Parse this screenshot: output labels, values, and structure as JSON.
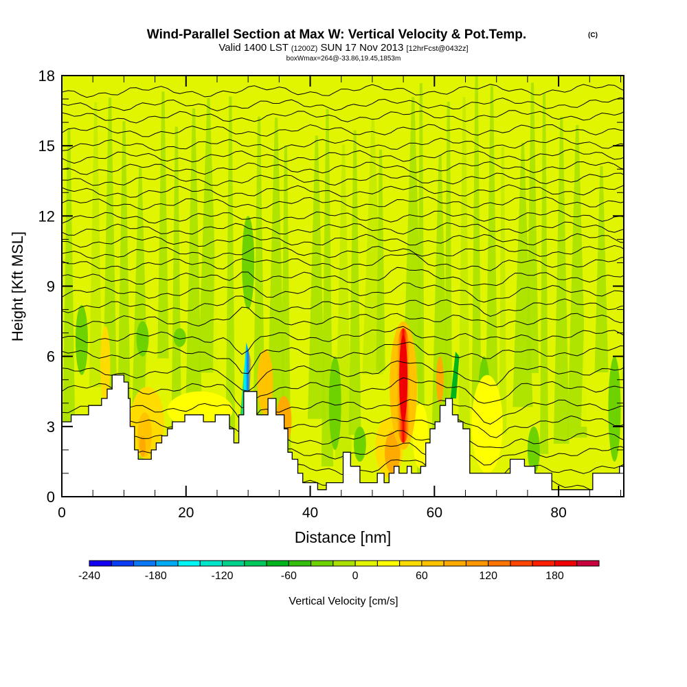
{
  "chart_data": {
    "type": "heatmap",
    "title": "Wind-Parallel Section at Max W: Vertical Velocity & Pot.Temp.",
    "title_mark": "(C)",
    "subtitle_parts": {
      "a": "Valid 1400 LST",
      "b": "(1200Z)",
      "c": "SUN 17 Nov 2013",
      "d": "[12hrFcst@0432z]"
    },
    "subtitle2": "boxWmax=264@-33.86,19.45,1853m",
    "xlabel": "Distance [nm]",
    "ylabel": "Height [Kft MSL]",
    "xlim": [
      0,
      90.5
    ],
    "ylim": [
      0,
      18
    ],
    "xticks": [
      0,
      20,
      40,
      60,
      80
    ],
    "xtick_labels": [
      "0",
      "20",
      "40",
      "60",
      "80"
    ],
    "yticks": [
      0,
      3,
      6,
      9,
      12,
      15,
      18
    ],
    "ytick_labels": [
      "0",
      "3",
      "6",
      "9",
      "12",
      "15",
      "18"
    ],
    "x_minor_step": 5,
    "y_minor_step": 1,
    "colorbar": {
      "label": "Vertical Velocity [cm/s]",
      "levels": [
        -240,
        -220,
        -200,
        -180,
        -160,
        -140,
        -120,
        -100,
        -80,
        -60,
        -40,
        -20,
        0,
        20,
        40,
        60,
        80,
        100,
        120,
        140,
        160,
        180,
        200,
        220
      ],
      "colors": [
        "#1400f0",
        "#0a3cf5",
        "#0a78f5",
        "#00aaf5",
        "#00f5f5",
        "#00e6c8",
        "#00d28c",
        "#00c85a",
        "#00b41e",
        "#32be0a",
        "#6ed200",
        "#aae100",
        "#e1f500",
        "#ffff00",
        "#ffdc00",
        "#ffc300",
        "#ffaa00",
        "#ff9600",
        "#ff7300",
        "#ff4600",
        "#ff1e00",
        "#f00000",
        "#c8003c"
      ],
      "tick_values": [
        -240,
        -180,
        -120,
        -60,
        0,
        60,
        120,
        180
      ],
      "tick_labels": [
        "-240",
        "-180",
        "-120",
        "-60",
        "0",
        "60",
        "120",
        "180"
      ]
    },
    "terrain_profile_kft": [
      [
        0,
        3.2
      ],
      [
        1.5,
        3.2
      ],
      [
        1.5,
        3.5
      ],
      [
        4.3,
        3.5
      ],
      [
        4.3,
        3.9
      ],
      [
        6.4,
        3.9
      ],
      [
        6.4,
        4.2
      ],
      [
        7.3,
        4.2
      ],
      [
        7.3,
        4.6
      ],
      [
        8.1,
        4.6
      ],
      [
        8.1,
        5.2
      ],
      [
        10.0,
        5.2
      ],
      [
        10.0,
        4.9
      ],
      [
        10.7,
        4.9
      ],
      [
        10.7,
        4.2
      ],
      [
        11.0,
        4.2
      ],
      [
        11.0,
        3.0
      ],
      [
        11.7,
        3.0
      ],
      [
        11.7,
        2.0
      ],
      [
        12.3,
        2.0
      ],
      [
        12.3,
        1.6
      ],
      [
        14.4,
        1.6
      ],
      [
        14.4,
        2.0
      ],
      [
        15.2,
        2.0
      ],
      [
        15.2,
        2.3
      ],
      [
        16.1,
        2.3
      ],
      [
        16.1,
        2.6
      ],
      [
        17.0,
        2.6
      ],
      [
        17.0,
        2.9
      ],
      [
        17.8,
        2.9
      ],
      [
        17.8,
        3.2
      ],
      [
        19.8,
        3.2
      ],
      [
        19.8,
        3.5
      ],
      [
        22.8,
        3.5
      ],
      [
        22.8,
        3.2
      ],
      [
        24.7,
        3.2
      ],
      [
        24.7,
        3.5
      ],
      [
        27.0,
        3.5
      ],
      [
        27.0,
        2.9
      ],
      [
        27.7,
        2.9
      ],
      [
        27.7,
        2.3
      ],
      [
        28.5,
        2.3
      ],
      [
        28.5,
        3.5
      ],
      [
        29.3,
        3.5
      ],
      [
        29.3,
        4.5
      ],
      [
        31.4,
        4.5
      ],
      [
        31.4,
        3.5
      ],
      [
        33.2,
        3.5
      ],
      [
        33.2,
        4.2
      ],
      [
        34.5,
        4.2
      ],
      [
        34.5,
        3.5
      ],
      [
        35.8,
        3.5
      ],
      [
        35.8,
        2.9
      ],
      [
        36.4,
        2.9
      ],
      [
        36.4,
        1.9
      ],
      [
        37.1,
        1.9
      ],
      [
        37.1,
        1.6
      ],
      [
        38.0,
        1.6
      ],
      [
        38.0,
        1.0
      ],
      [
        38.8,
        1.0
      ],
      [
        38.8,
        0.6
      ],
      [
        41.2,
        0.6
      ],
      [
        41.2,
        0.3
      ],
      [
        42.6,
        0.3
      ],
      [
        42.6,
        0.6
      ],
      [
        45.3,
        0.6
      ],
      [
        45.3,
        1.9
      ],
      [
        46.5,
        1.9
      ],
      [
        46.5,
        1.3
      ],
      [
        48.0,
        1.3
      ],
      [
        48.0,
        0.6
      ],
      [
        50.8,
        0.6
      ],
      [
        50.8,
        1.0
      ],
      [
        51.9,
        1.0
      ],
      [
        51.9,
        0.6
      ],
      [
        52.7,
        0.6
      ],
      [
        52.7,
        1.0
      ],
      [
        53.5,
        1.0
      ],
      [
        53.5,
        1.3
      ],
      [
        54.3,
        1.3
      ],
      [
        54.3,
        1.0
      ],
      [
        55.6,
        1.0
      ],
      [
        55.6,
        1.3
      ],
      [
        56.3,
        1.3
      ],
      [
        56.3,
        1.0
      ],
      [
        57.8,
        1.0
      ],
      [
        57.8,
        1.3
      ],
      [
        58.6,
        1.3
      ],
      [
        58.6,
        2.3
      ],
      [
        59.3,
        2.3
      ],
      [
        59.3,
        2.9
      ],
      [
        60.1,
        2.9
      ],
      [
        60.1,
        3.2
      ],
      [
        60.9,
        3.2
      ],
      [
        60.9,
        3.9
      ],
      [
        61.8,
        3.9
      ],
      [
        61.8,
        4.2
      ],
      [
        62.9,
        4.2
      ],
      [
        62.9,
        3.5
      ],
      [
        63.8,
        3.5
      ],
      [
        63.8,
        3.2
      ],
      [
        64.6,
        3.2
      ],
      [
        64.6,
        2.9
      ],
      [
        65.7,
        2.9
      ],
      [
        65.7,
        1.0
      ],
      [
        72.2,
        1.0
      ],
      [
        72.2,
        1.6
      ],
      [
        74.5,
        1.6
      ],
      [
        74.5,
        1.3
      ],
      [
        76.2,
        1.3
      ],
      [
        76.2,
        1.0
      ],
      [
        78.9,
        1.0
      ],
      [
        78.9,
        0.3
      ],
      [
        85.5,
        0.3
      ],
      [
        85.5,
        1.0
      ],
      [
        89.8,
        1.0
      ],
      [
        89.8,
        1.3
      ],
      [
        90.5,
        1.3
      ],
      [
        90.5,
        0
      ]
    ],
    "theta_contours_kft": [
      0.4,
      1.1,
      1.8,
      2.4,
      3.1,
      3.8,
      4.6,
      5.3,
      6.1,
      6.8,
      7.5,
      8.1,
      8.7,
      9.3,
      9.9,
      10.4,
      10.9,
      11.4,
      11.9,
      12.5,
      13.0,
      13.5,
      14.0,
      14.5,
      15.0,
      15.6,
      16.2,
      16.7,
      17.3
    ],
    "updraft_max": {
      "x_nm": 55,
      "top_kft": 7.2,
      "bottom_kft": 2.3,
      "value_cm_s": 200
    },
    "downdraft_min": {
      "x_nm": 29.6,
      "top_kft": 5.8,
      "bottom_kft": 4.5,
      "value_cm_s": -150
    }
  }
}
